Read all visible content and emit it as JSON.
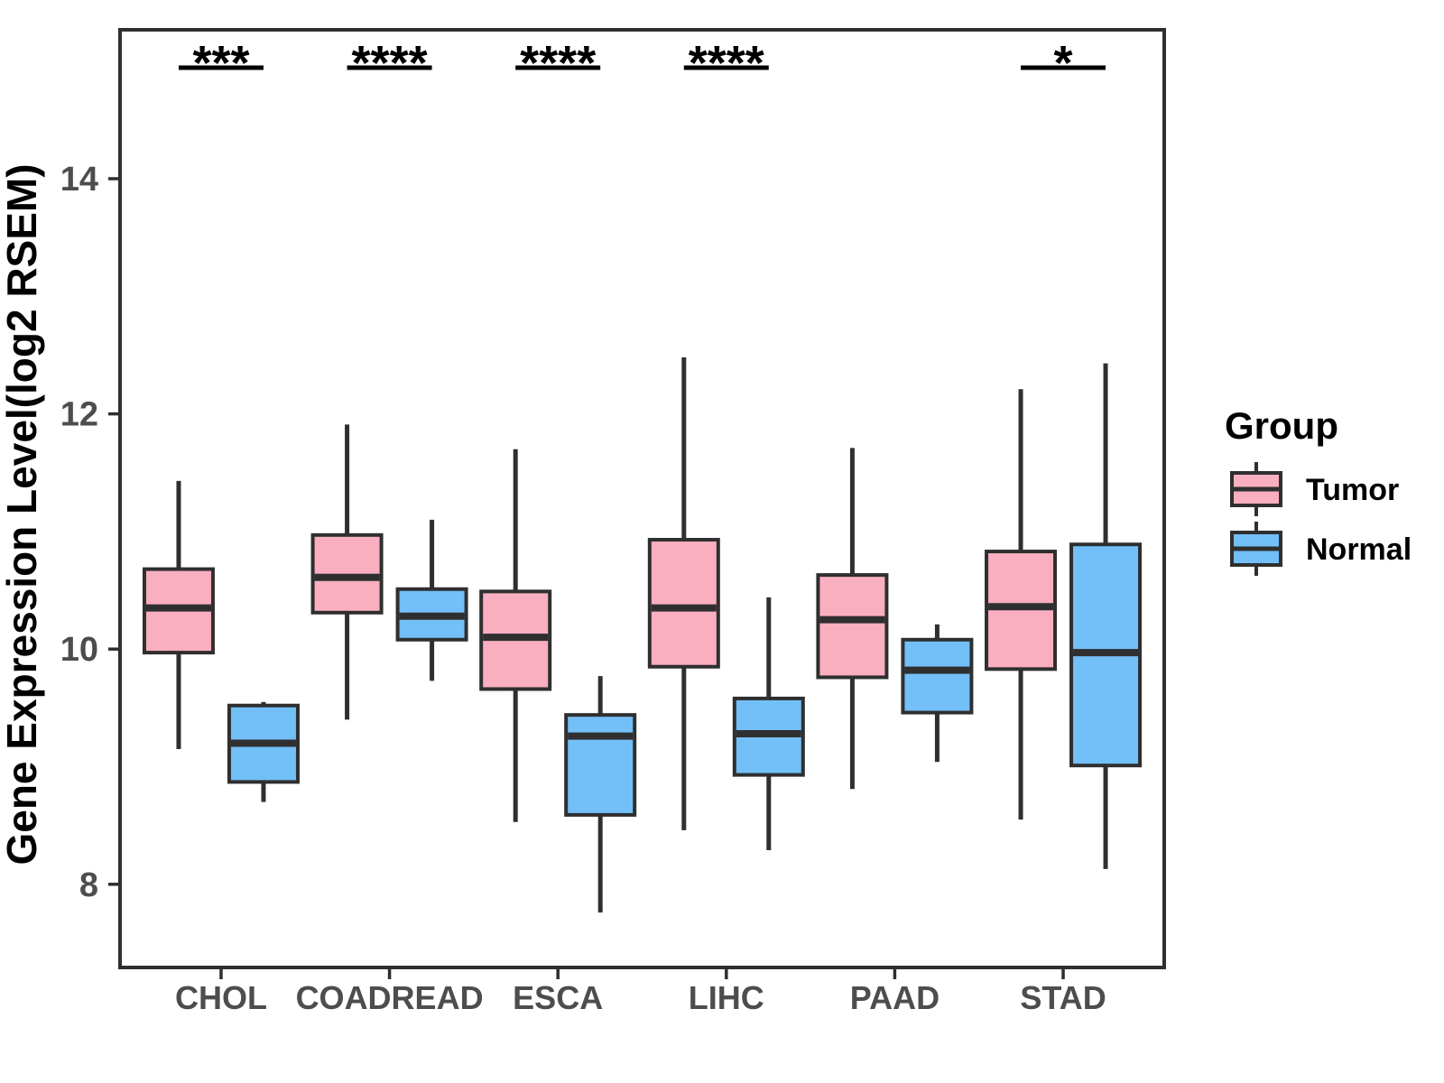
{
  "figure": {
    "background": "#ffffff",
    "line_color": "#2f2f2f",
    "axis_text_color": "#4d4d4d",
    "title_text_color": "#000000"
  },
  "y_axis": {
    "title": "Gene Expression Level(log2 RSEM)",
    "tick_labels": [
      "8",
      "10",
      "12",
      "14"
    ]
  },
  "legend": {
    "title": "Group",
    "items": [
      {
        "label": "Tumor",
        "color": "#F9AFC0"
      },
      {
        "label": "Normal",
        "color": "#73BFF7"
      }
    ]
  },
  "chart_data": {
    "type": "boxplot",
    "title": "",
    "xlabel": "",
    "ylabel": "Gene Expression Level(log2 RSEM)",
    "ylim": [
      7.3,
      15.3
    ],
    "yticks": [
      8,
      10,
      12,
      14
    ],
    "grid": false,
    "legend_position": "right",
    "categories": [
      "CHOL",
      "COADREAD",
      "ESCA",
      "LIHC",
      "PAAD",
      "STAD"
    ],
    "significance": [
      "***",
      "****",
      "****",
      "****",
      "",
      "*"
    ],
    "groups": [
      {
        "name": "Tumor",
        "color": "#F9AFC0"
      },
      {
        "name": "Normal",
        "color": "#73BFF7"
      }
    ],
    "series": [
      {
        "name": "Tumor",
        "boxes": [
          {
            "category": "CHOL",
            "min": 9.15,
            "q1": 9.97,
            "median": 10.35,
            "q3": 10.68,
            "max": 11.43
          },
          {
            "category": "COADREAD",
            "min": 9.4,
            "q1": 10.31,
            "median": 10.61,
            "q3": 10.97,
            "max": 11.91
          },
          {
            "category": "ESCA",
            "min": 8.53,
            "q1": 9.66,
            "median": 10.1,
            "q3": 10.49,
            "max": 11.7
          },
          {
            "category": "LIHC",
            "min": 8.46,
            "q1": 9.85,
            "median": 10.35,
            "q3": 10.93,
            "max": 12.48
          },
          {
            "category": "PAAD",
            "min": 8.81,
            "q1": 9.76,
            "median": 10.25,
            "q3": 10.63,
            "max": 11.71
          },
          {
            "category": "STAD",
            "min": 8.55,
            "q1": 9.83,
            "median": 10.36,
            "q3": 10.83,
            "max": 12.21
          }
        ]
      },
      {
        "name": "Normal",
        "boxes": [
          {
            "category": "CHOL",
            "min": 8.7,
            "q1": 8.87,
            "median": 9.2,
            "q3": 9.52,
            "max": 9.55
          },
          {
            "category": "COADREAD",
            "min": 9.73,
            "q1": 10.08,
            "median": 10.28,
            "q3": 10.51,
            "max": 11.1
          },
          {
            "category": "ESCA",
            "min": 7.76,
            "q1": 8.59,
            "median": 9.26,
            "q3": 9.44,
            "max": 9.77
          },
          {
            "category": "LIHC",
            "min": 8.29,
            "q1": 8.93,
            "median": 9.28,
            "q3": 9.58,
            "max": 10.44
          },
          {
            "category": "PAAD",
            "min": 9.04,
            "q1": 9.46,
            "median": 9.82,
            "q3": 10.08,
            "max": 10.21
          },
          {
            "category": "STAD",
            "min": 8.13,
            "q1": 9.01,
            "median": 9.97,
            "q3": 10.89,
            "max": 12.43
          }
        ]
      }
    ]
  }
}
